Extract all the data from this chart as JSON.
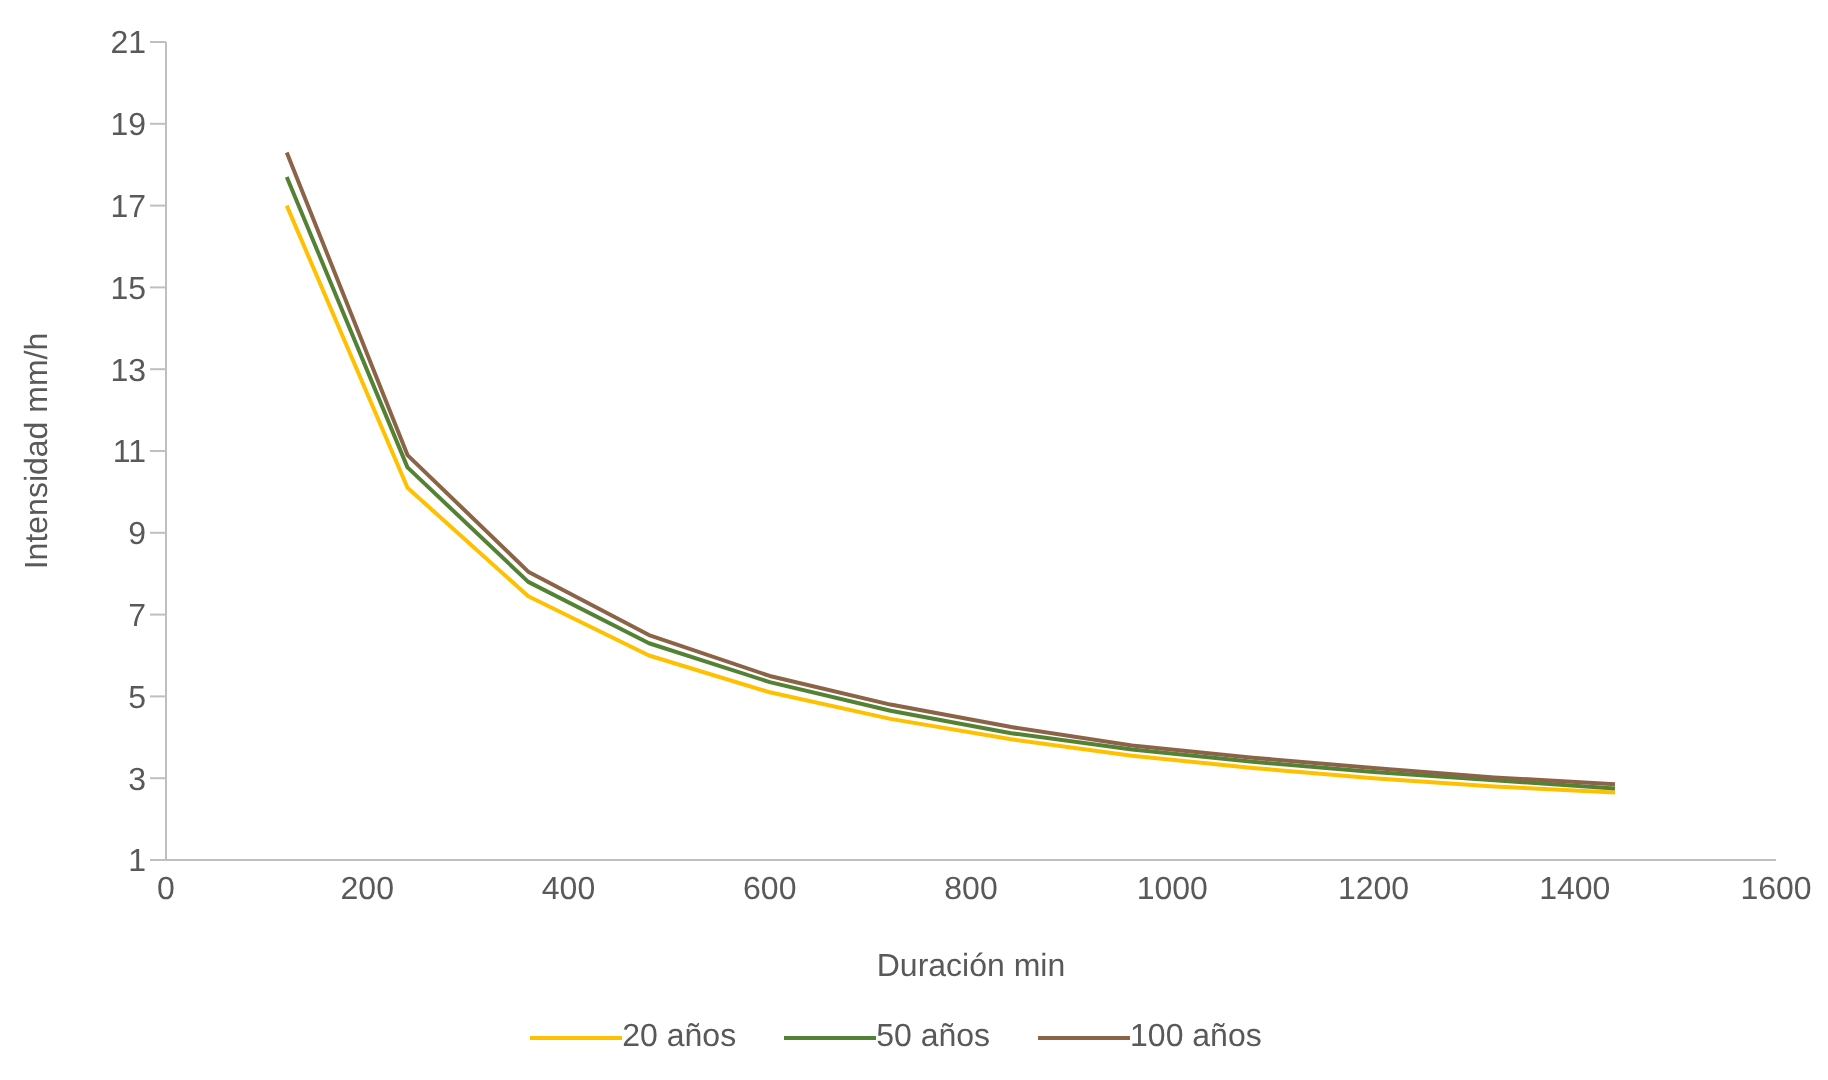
{
  "chart_data": {
    "type": "line",
    "xlabel": "Duración min",
    "ylabel": "Intensidad   mm/h",
    "x": [
      120,
      240,
      360,
      480,
      600,
      720,
      840,
      960,
      1080,
      1200,
      1320,
      1440
    ],
    "series": [
      {
        "name": "20 años",
        "color": "#ffc000",
        "values": [
          17.0,
          10.1,
          7.45,
          6.0,
          5.1,
          4.45,
          3.95,
          3.55,
          3.25,
          3.0,
          2.8,
          2.65
        ]
      },
      {
        "name": "50 años",
        "color": "#548235",
        "values": [
          17.7,
          10.6,
          7.8,
          6.3,
          5.35,
          4.65,
          4.1,
          3.7,
          3.4,
          3.15,
          2.95,
          2.75
        ]
      },
      {
        "name": "100 años",
        "color": "#8b6448",
        "values": [
          18.3,
          10.9,
          8.05,
          6.5,
          5.5,
          4.8,
          4.25,
          3.8,
          3.5,
          3.25,
          3.02,
          2.85
        ]
      }
    ],
    "xlim": [
      0,
      1600
    ],
    "xticks": [
      0,
      200,
      400,
      600,
      800,
      1000,
      1200,
      1400,
      1600
    ],
    "ylim": [
      1,
      21
    ],
    "yticks": [
      1,
      3,
      5,
      7,
      9,
      11,
      13,
      15,
      17,
      19,
      21
    ],
    "grid": false,
    "legend": "bottom",
    "marker": "none",
    "line_style": "solid"
  }
}
